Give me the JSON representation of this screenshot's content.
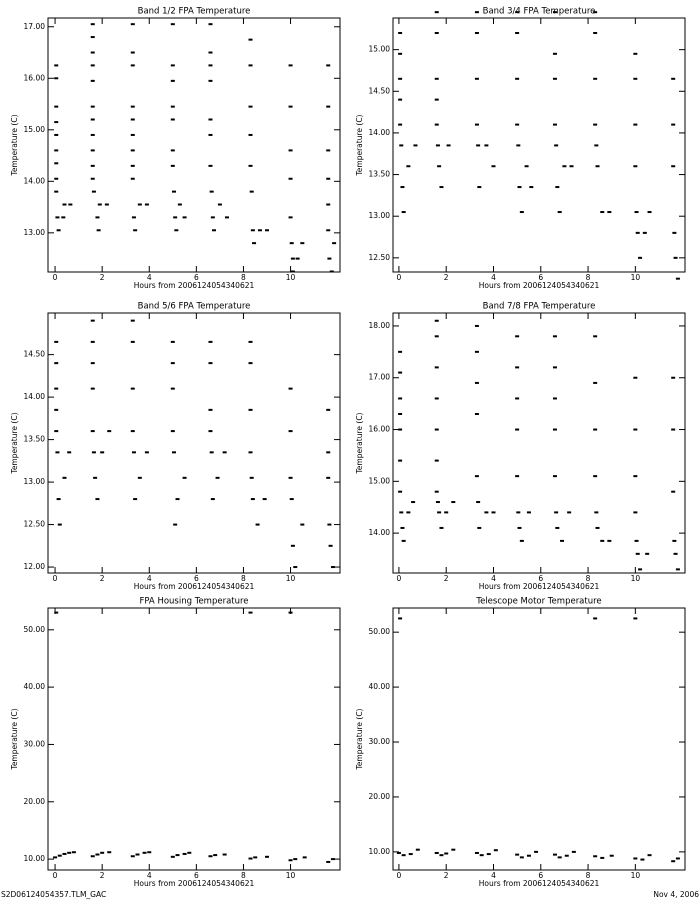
{
  "chart_data": [
    {
      "type": "scatter",
      "title": "Band 1/2 FPA Temperature",
      "xlabel": "Hours from 2006124054340621",
      "ylabel": "Temperature (C)",
      "color": "#000000",
      "xlim": [
        -0.3,
        12.1
      ],
      "xticks": [
        0,
        2,
        4,
        6,
        8,
        10
      ],
      "ylim": [
        12.24,
        17.17
      ],
      "yticks": [
        {
          "value": 13,
          "label": "13.00"
        },
        {
          "value": 14,
          "label": "14.00"
        },
        {
          "value": 15,
          "label": "15.00"
        },
        {
          "value": 16,
          "label": "16.00"
        },
        {
          "value": 17,
          "label": "17.00"
        }
      ],
      "x": [
        0.05,
        0.05,
        0.05,
        0.05,
        0.05,
        0.05,
        0.05,
        0.05,
        0.05,
        0.1,
        0.15,
        0.35,
        0.4,
        0.65,
        1.6,
        1.6,
        1.6,
        1.6,
        1.6,
        1.6,
        1.6,
        1.6,
        1.6,
        1.6,
        1.6,
        1.65,
        1.8,
        1.85,
        1.9,
        2.2,
        3.3,
        3.3,
        3.3,
        3.3,
        3.3,
        3.3,
        3.3,
        3.3,
        3.3,
        3.35,
        3.4,
        3.6,
        3.9,
        5.0,
        5.0,
        5.0,
        5.0,
        5.0,
        5.0,
        5.0,
        5.05,
        5.1,
        5.15,
        5.3,
        5.5,
        6.6,
        6.6,
        6.6,
        6.6,
        6.6,
        6.6,
        6.6,
        6.65,
        6.7,
        6.75,
        7.0,
        7.3,
        8.3,
        8.3,
        8.3,
        8.3,
        8.3,
        8.35,
        8.4,
        8.45,
        8.7,
        9.0,
        10.0,
        10.0,
        10.0,
        10.0,
        10.0,
        10.05,
        10.1,
        10.3,
        10.1,
        10.5,
        11.6,
        11.6,
        11.6,
        11.6,
        11.6,
        11.6,
        11.65,
        11.75,
        11.85
      ],
      "values": [
        16.25,
        16.0,
        15.45,
        15.15,
        14.9,
        14.6,
        14.35,
        14.05,
        13.8,
        13.3,
        13.05,
        13.3,
        13.55,
        13.55,
        17.05,
        16.8,
        16.5,
        16.25,
        15.95,
        15.45,
        15.2,
        14.9,
        14.6,
        14.3,
        14.05,
        13.8,
        13.3,
        13.05,
        13.55,
        13.55,
        17.05,
        16.5,
        16.25,
        15.45,
        15.2,
        14.9,
        14.6,
        14.3,
        14.05,
        13.3,
        13.05,
        13.55,
        13.55,
        17.05,
        16.25,
        15.95,
        15.45,
        15.2,
        14.6,
        14.3,
        13.8,
        13.3,
        13.05,
        13.55,
        13.3,
        17.05,
        16.5,
        16.25,
        15.95,
        15.2,
        14.9,
        14.3,
        13.8,
        13.3,
        13.05,
        13.55,
        13.3,
        16.75,
        16.25,
        15.45,
        14.9,
        14.3,
        13.8,
        13.05,
        12.8,
        13.05,
        13.05,
        16.25,
        15.45,
        14.6,
        14.05,
        13.3,
        12.8,
        12.5,
        12.5,
        12.25,
        12.8,
        16.25,
        15.45,
        14.6,
        14.05,
        13.55,
        13.05,
        12.5,
        12.25,
        12.8
      ]
    },
    {
      "type": "scatter",
      "title": "Band 3/4 FPA Temperature",
      "xlabel": "Hours from 2006124054340621",
      "ylabel": "Temperature (C)",
      "color": "#000000",
      "xlim": [
        -0.25,
        12.1
      ],
      "xticks": [
        0,
        2,
        4,
        6,
        8,
        10
      ],
      "ylim": [
        12.33,
        15.38
      ],
      "yticks": [
        {
          "value": 12.5,
          "label": "12.50"
        },
        {
          "value": 13,
          "label": "13.00"
        },
        {
          "value": 13.5,
          "label": "13.50"
        },
        {
          "value": 14,
          "label": "14.00"
        },
        {
          "value": 14.5,
          "label": "14.50"
        },
        {
          "value": 15,
          "label": "15.00"
        }
      ],
      "x": [
        0.05,
        0.05,
        0.05,
        0.05,
        0.05,
        0.1,
        0.15,
        0.2,
        0.4,
        0.7,
        1.6,
        1.6,
        1.6,
        1.6,
        1.6,
        1.65,
        1.7,
        1.8,
        2.1,
        3.3,
        3.3,
        3.3,
        3.3,
        3.35,
        3.4,
        3.7,
        4.0,
        5.0,
        5.0,
        5.0,
        5.0,
        5.05,
        5.1,
        5.2,
        5.4,
        5.6,
        6.6,
        6.6,
        6.6,
        6.6,
        6.65,
        6.7,
        6.8,
        7.0,
        7.3,
        8.3,
        8.3,
        8.3,
        8.3,
        8.35,
        8.4,
        8.6,
        8.9,
        10.0,
        10.0,
        10.0,
        10.0,
        10.05,
        10.1,
        10.2,
        10.4,
        10.6,
        11.6,
        11.6,
        11.6,
        11.65,
        11.7,
        11.8
      ],
      "values": [
        15.2,
        14.95,
        14.65,
        14.4,
        14.1,
        13.85,
        13.35,
        13.05,
        13.6,
        13.85,
        15.45,
        15.2,
        14.65,
        14.4,
        14.1,
        13.85,
        13.6,
        13.35,
        13.85,
        15.45,
        15.2,
        14.65,
        14.1,
        13.85,
        13.35,
        13.85,
        13.6,
        15.45,
        15.2,
        14.65,
        14.1,
        13.85,
        13.35,
        13.05,
        13.6,
        13.35,
        15.45,
        14.95,
        14.65,
        14.1,
        13.85,
        13.35,
        13.05,
        13.6,
        13.6,
        15.45,
        15.2,
        14.65,
        14.1,
        13.85,
        13.6,
        13.05,
        13.05,
        14.95,
        14.65,
        14.1,
        13.6,
        13.05,
        12.8,
        12.5,
        12.8,
        13.05,
        14.65,
        14.1,
        13.6,
        12.8,
        12.5,
        12.25
      ]
    },
    {
      "type": "scatter",
      "title": "Band 5/6 FPA Temperature",
      "xlabel": "Hours from 2006124054340621",
      "ylabel": "Temperature (C)",
      "color": "#000000",
      "xlim": [
        -0.3,
        12.1
      ],
      "xticks": [
        0,
        2,
        4,
        6,
        8,
        10
      ],
      "ylim": [
        11.93,
        14.99
      ],
      "yticks": [
        {
          "value": 12,
          "label": "12.00"
        },
        {
          "value": 12.5,
          "label": "12.50"
        },
        {
          "value": 13,
          "label": "13.00"
        },
        {
          "value": 13.5,
          "label": "13.50"
        },
        {
          "value": 14,
          "label": "14.00"
        },
        {
          "value": 14.5,
          "label": "14.50"
        }
      ],
      "x": [
        0.05,
        0.05,
        0.05,
        0.05,
        0.05,
        0.1,
        0.15,
        0.2,
        0.4,
        0.6,
        1.6,
        1.6,
        1.6,
        1.6,
        1.6,
        1.65,
        1.7,
        1.8,
        2.0,
        2.3,
        3.3,
        3.3,
        3.3,
        3.3,
        3.35,
        3.4,
        3.6,
        3.9,
        5.0,
        5.0,
        5.0,
        5.0,
        5.05,
        5.1,
        5.2,
        5.5,
        6.6,
        6.6,
        6.6,
        6.6,
        6.65,
        6.7,
        6.9,
        7.2,
        8.3,
        8.3,
        8.3,
        8.3,
        8.35,
        8.4,
        8.6,
        8.9,
        10.0,
        10.0,
        10.0,
        10.05,
        10.1,
        10.2,
        10.5,
        11.6,
        11.6,
        11.6,
        11.65,
        11.7,
        11.8
      ],
      "values": [
        14.65,
        14.4,
        14.1,
        13.85,
        13.6,
        13.35,
        12.8,
        12.5,
        13.05,
        13.35,
        14.9,
        14.65,
        14.4,
        14.1,
        13.6,
        13.35,
        13.05,
        12.8,
        13.35,
        13.6,
        14.9,
        14.65,
        14.1,
        13.6,
        13.35,
        12.8,
        13.05,
        13.35,
        14.65,
        14.4,
        14.1,
        13.6,
        13.35,
        12.5,
        12.8,
        13.05,
        14.65,
        14.4,
        13.85,
        13.6,
        13.35,
        12.8,
        13.05,
        13.35,
        14.65,
        14.4,
        13.85,
        13.35,
        13.05,
        12.8,
        12.5,
        12.8,
        14.1,
        13.6,
        13.05,
        12.8,
        12.25,
        12.0,
        12.5,
        13.85,
        13.35,
        13.05,
        12.5,
        12.25,
        12.0
      ]
    },
    {
      "type": "scatter",
      "title": "Band 7/8 FPA Temperature",
      "xlabel": "Hours from 2006124054340621",
      "ylabel": "Temperature (C)",
      "color": "#000000",
      "xlim": [
        -0.25,
        12.1
      ],
      "xticks": [
        0,
        2,
        4,
        6,
        8,
        10
      ],
      "ylim": [
        13.23,
        18.25
      ],
      "yticks": [
        {
          "value": 14,
          "label": "14.00"
        },
        {
          "value": 15,
          "label": "15.00"
        },
        {
          "value": 16,
          "label": "16.00"
        },
        {
          "value": 17,
          "label": "17.00"
        },
        {
          "value": 18,
          "label": "18.00"
        }
      ],
      "x": [
        0.05,
        0.05,
        0.05,
        0.05,
        0.05,
        0.05,
        0.05,
        0.1,
        0.15,
        0.2,
        0.4,
        0.6,
        1.6,
        1.6,
        1.6,
        1.6,
        1.6,
        1.6,
        1.6,
        1.65,
        1.7,
        1.8,
        2.0,
        2.3,
        3.3,
        3.3,
        3.3,
        3.3,
        3.3,
        3.35,
        3.4,
        3.7,
        4.0,
        5.0,
        5.0,
        5.0,
        5.0,
        5.0,
        5.05,
        5.1,
        5.2,
        5.5,
        6.6,
        6.6,
        6.6,
        6.6,
        6.6,
        6.65,
        6.7,
        6.9,
        7.2,
        8.3,
        8.3,
        8.3,
        8.3,
        8.35,
        8.4,
        8.6,
        8.9,
        10.0,
        10.0,
        10.0,
        10.0,
        10.05,
        10.1,
        10.2,
        10.5,
        11.6,
        11.6,
        11.6,
        11.65,
        11.7,
        11.8
      ],
      "values": [
        17.5,
        17.1,
        16.6,
        16.3,
        16.0,
        15.4,
        14.8,
        14.4,
        14.1,
        13.85,
        14.4,
        14.6,
        18.1,
        17.8,
        17.2,
        16.6,
        16.0,
        15.4,
        14.8,
        14.6,
        14.4,
        14.1,
        14.4,
        14.6,
        18.0,
        17.5,
        16.9,
        16.3,
        15.1,
        14.6,
        14.1,
        14.4,
        14.4,
        17.8,
        17.2,
        16.6,
        16.0,
        15.1,
        14.4,
        14.1,
        13.85,
        14.4,
        17.8,
        17.2,
        16.6,
        16.0,
        15.1,
        14.4,
        14.1,
        13.85,
        14.4,
        17.8,
        16.9,
        16.0,
        15.1,
        14.4,
        14.1,
        13.85,
        13.85,
        17.0,
        16.0,
        15.1,
        14.4,
        13.85,
        13.6,
        13.3,
        13.6,
        17.0,
        16.0,
        14.8,
        13.85,
        13.6,
        13.3
      ]
    },
    {
      "type": "scatter",
      "title": "FPA Housing Temperature",
      "xlabel": "Hours from 2006124054340621",
      "ylabel": "Temperature (C)",
      "color": "#000000",
      "xlim": [
        -0.3,
        12.1
      ],
      "xticks": [
        0,
        2,
        4,
        6,
        8,
        10
      ],
      "ylim": [
        8.1,
        53.8
      ],
      "yticks": [
        {
          "value": 10,
          "label": "10.00"
        },
        {
          "value": 20,
          "label": "20.00"
        },
        {
          "value": 30,
          "label": "30.00"
        },
        {
          "value": 40,
          "label": "40.00"
        },
        {
          "value": 50,
          "label": "50.00"
        }
      ],
      "x": [
        0.05,
        0.0,
        0.2,
        0.4,
        0.6,
        0.8,
        1.6,
        1.8,
        2.0,
        2.3,
        3.3,
        3.5,
        3.8,
        4.0,
        5.0,
        5.2,
        5.5,
        5.7,
        6.6,
        6.8,
        7.2,
        8.3,
        8.3,
        8.5,
        9.0,
        10.0,
        10.0,
        10.2,
        10.6,
        11.6,
        11.8
      ],
      "values": [
        53.0,
        10.3,
        10.6,
        10.9,
        11.1,
        11.2,
        10.5,
        10.8,
        11.1,
        11.2,
        10.5,
        10.8,
        11.1,
        11.2,
        10.4,
        10.7,
        10.9,
        11.1,
        10.5,
        10.7,
        10.8,
        53.0,
        10.1,
        10.3,
        10.4,
        53.0,
        9.8,
        10.0,
        10.3,
        9.5,
        10.0
      ]
    },
    {
      "type": "scatter",
      "title": "Telescope Motor Temperature",
      "xlabel": "Hours from 2006124054340621",
      "ylabel": "Temperature (C)",
      "color": "#000000",
      "xlim": [
        -0.25,
        12.1
      ],
      "xticks": [
        0,
        2,
        4,
        6,
        8,
        10
      ],
      "ylim": [
        6.7,
        54.4
      ],
      "yticks": [
        {
          "value": 10,
          "label": "10.00"
        },
        {
          "value": 20,
          "label": "20.00"
        },
        {
          "value": 30,
          "label": "30.00"
        },
        {
          "value": 40,
          "label": "40.00"
        },
        {
          "value": 50,
          "label": "50.00"
        }
      ],
      "x": [
        0.05,
        0.0,
        0.2,
        0.5,
        0.8,
        1.6,
        1.8,
        2.0,
        2.3,
        3.3,
        3.5,
        3.8,
        4.1,
        5.0,
        5.2,
        5.5,
        5.8,
        6.6,
        6.8,
        7.1,
        7.4,
        8.3,
        8.3,
        8.6,
        9.0,
        10.0,
        10.0,
        10.3,
        10.6,
        11.6,
        11.8
      ],
      "values": [
        52.5,
        9.8,
        9.4,
        9.6,
        10.4,
        9.8,
        9.4,
        9.7,
        10.4,
        9.8,
        9.4,
        9.6,
        10.3,
        9.5,
        9.0,
        9.3,
        10.0,
        9.5,
        9.0,
        9.3,
        10.0,
        52.5,
        9.2,
        8.9,
        9.3,
        52.5,
        8.8,
        8.6,
        9.4,
        8.3,
        8.8
      ]
    }
  ],
  "footer": {
    "left": "S2D06124054357.TLM_GAC",
    "right": "Nov 4, 2006"
  }
}
